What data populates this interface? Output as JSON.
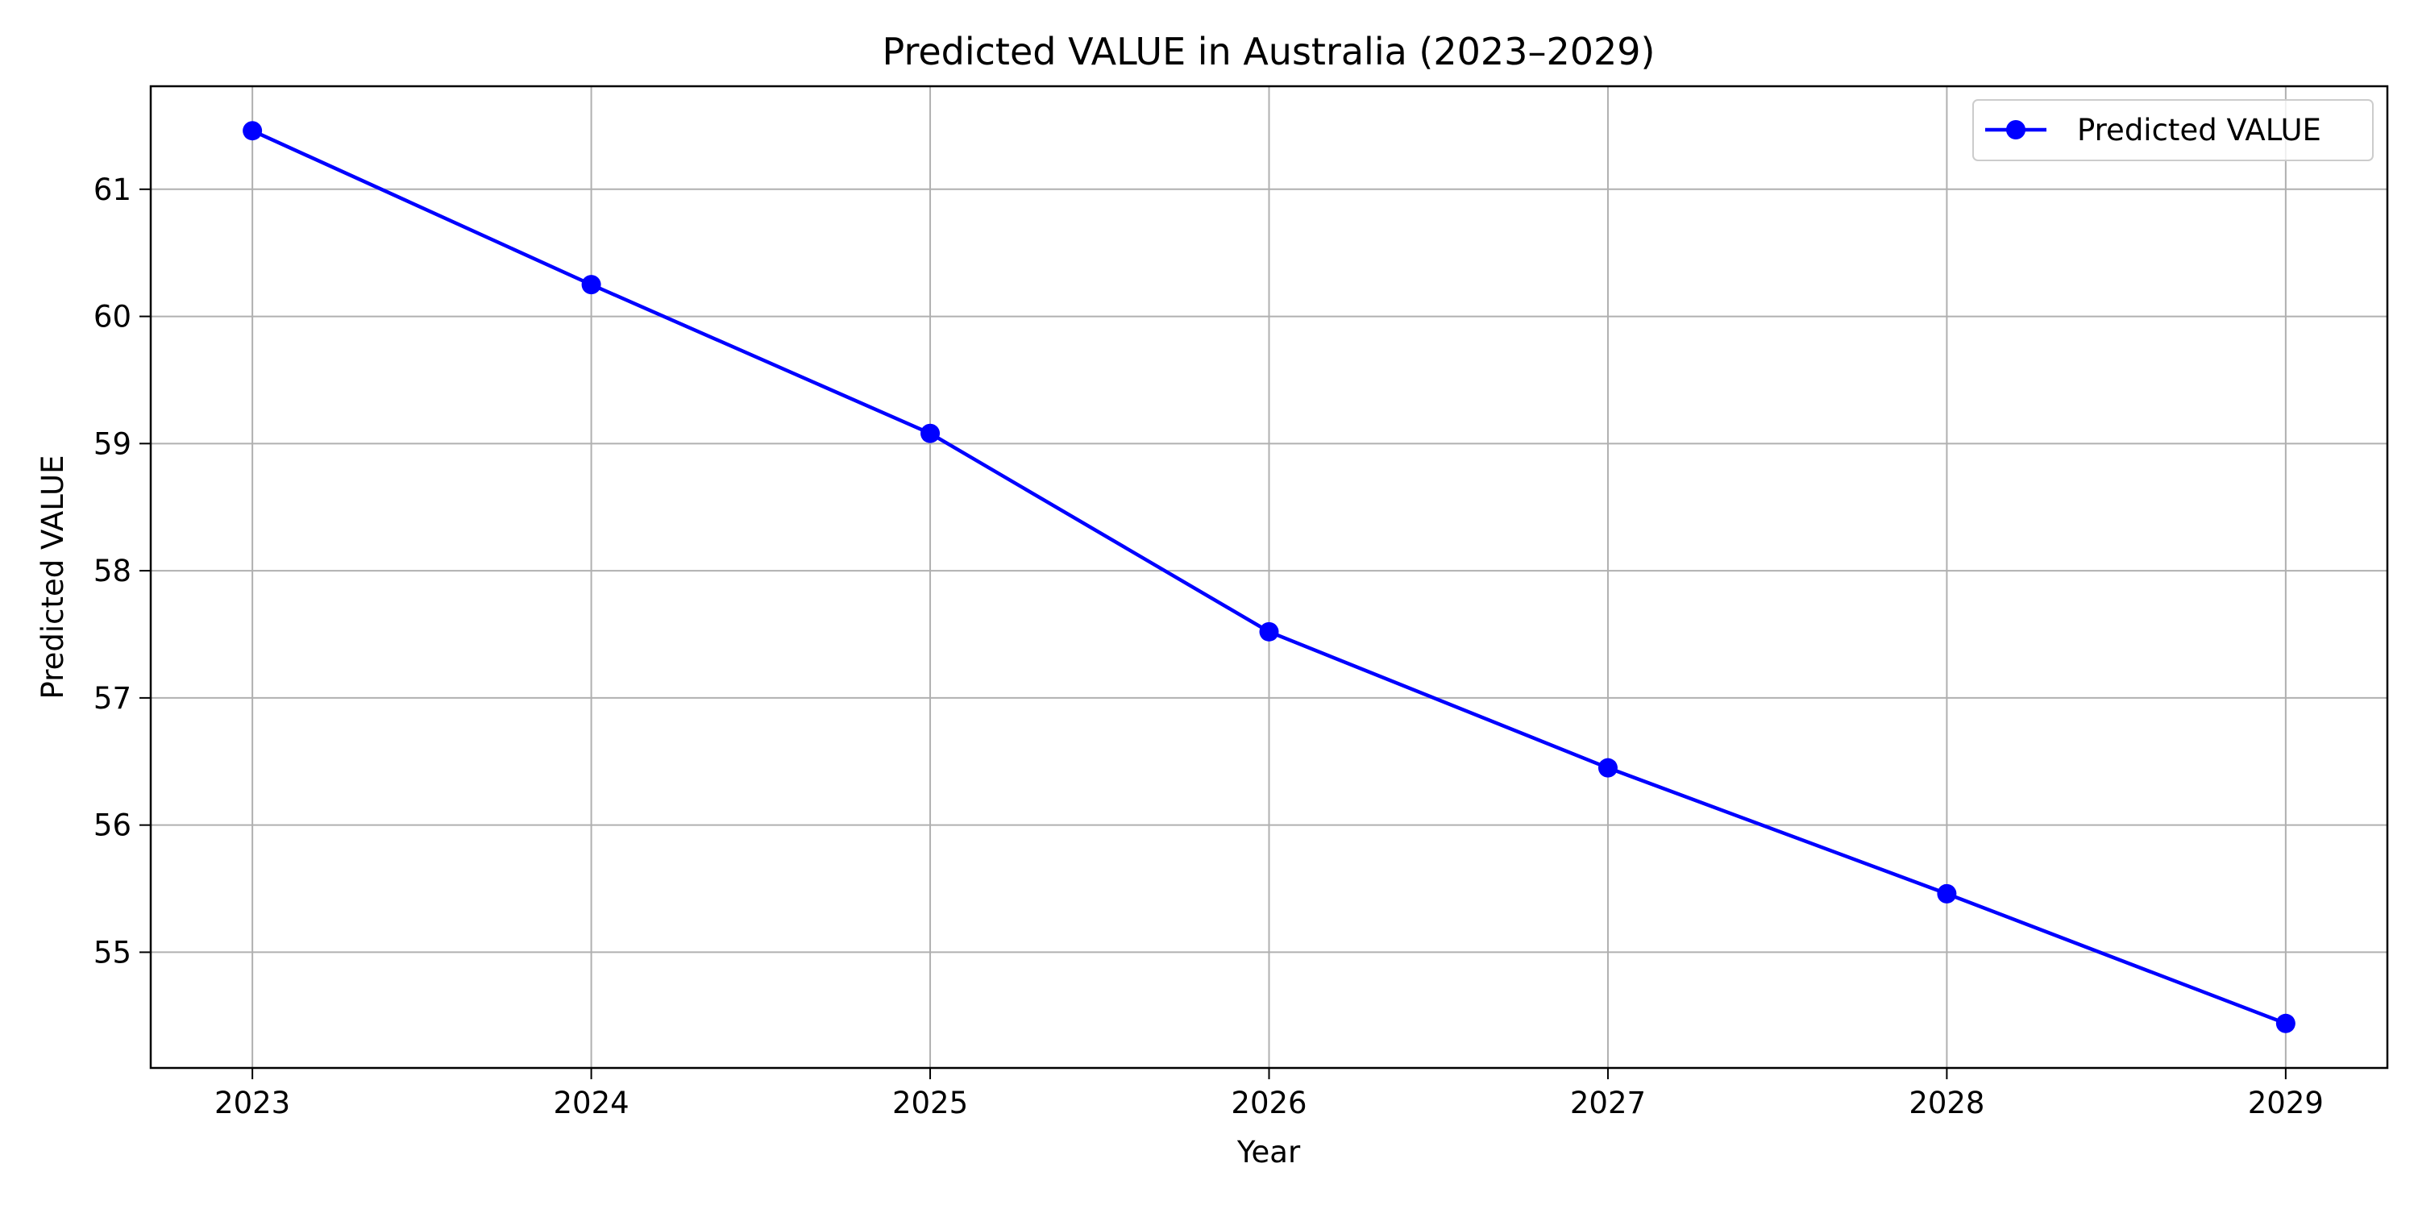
{
  "chart_data": {
    "type": "line",
    "title": "Predicted VALUE in Australia (2023–2029)",
    "xlabel": "Year",
    "ylabel": "Predicted VALUE",
    "x": [
      2023,
      2024,
      2025,
      2026,
      2027,
      2028,
      2029
    ],
    "x_tick_labels": [
      "2023",
      "2024",
      "2025",
      "2026",
      "2027",
      "2028",
      "2029"
    ],
    "y_ticks": [
      55,
      56,
      57,
      58,
      59,
      60,
      61
    ],
    "y_tick_labels": [
      "55",
      "56",
      "57",
      "58",
      "59",
      "60",
      "61"
    ],
    "xlim": [
      2022.7,
      2029.3
    ],
    "ylim": [
      54.09,
      61.81
    ],
    "grid": true,
    "legend_position": "top-right",
    "series": [
      {
        "name": "Predicted VALUE",
        "color": "#0000ff",
        "marker": "circle",
        "values": [
          61.46,
          60.25,
          59.08,
          57.52,
          56.45,
          55.46,
          54.44
        ]
      }
    ]
  }
}
